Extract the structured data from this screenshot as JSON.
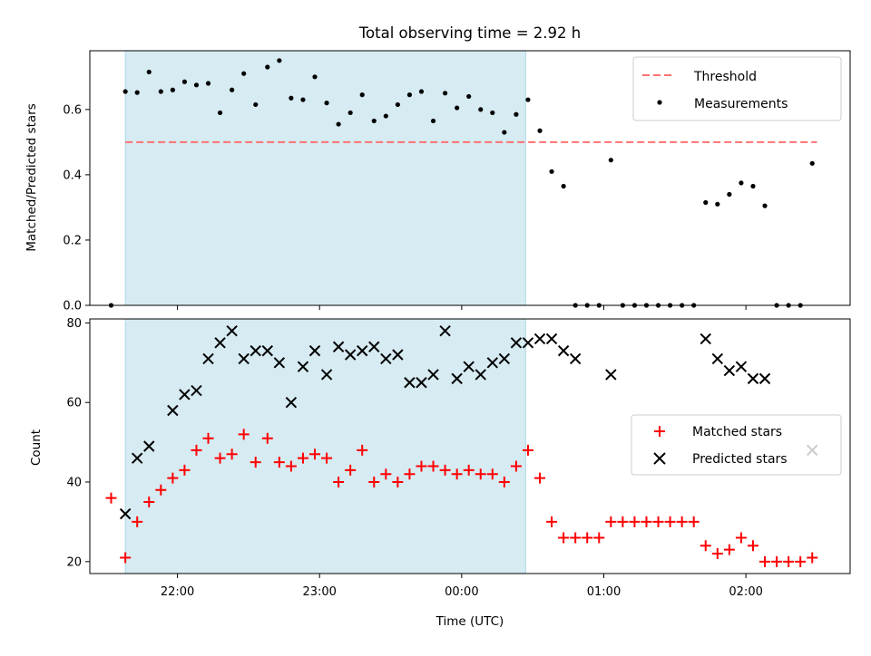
{
  "title": "Total observing time = 2.92 h",
  "chart_data": [
    {
      "type": "scatter",
      "panel": "top",
      "ylabel": "Matched/Predicted stars",
      "ylim": [
        0,
        0.78
      ],
      "yticks": [
        0.0,
        0.2,
        0.4,
        0.6
      ],
      "ytick_labels": [
        "0.0",
        "0.2",
        "0.4",
        "0.6"
      ],
      "xlim": [
        "21:23",
        "02:44"
      ],
      "shaded_range": [
        "21:38",
        "00:27"
      ],
      "threshold": {
        "value": 0.5,
        "x_range": [
          "21:38",
          "02:30"
        ],
        "color": "#ff7070"
      },
      "legend": {
        "placement": "top-right",
        "entries": [
          "Threshold",
          "Measurements"
        ]
      },
      "series": [
        {
          "name": "Measurements",
          "color": "#000000",
          "marker": "dot",
          "points": [
            [
              "21:32",
              0.0
            ],
            [
              "21:38",
              0.655
            ],
            [
              "21:43",
              0.652
            ],
            [
              "21:48",
              0.715
            ],
            [
              "21:53",
              0.655
            ],
            [
              "21:58",
              0.66
            ],
            [
              "22:03",
              0.685
            ],
            [
              "22:08",
              0.675
            ],
            [
              "22:13",
              0.68
            ],
            [
              "22:18",
              0.59
            ],
            [
              "22:23",
              0.66
            ],
            [
              "22:28",
              0.71
            ],
            [
              "22:33",
              0.615
            ],
            [
              "22:38",
              0.73
            ],
            [
              "22:43",
              0.75
            ],
            [
              "22:48",
              0.635
            ],
            [
              "22:53",
              0.63
            ],
            [
              "22:58",
              0.7
            ],
            [
              "23:03",
              0.62
            ],
            [
              "23:08",
              0.555
            ],
            [
              "23:13",
              0.59
            ],
            [
              "23:18",
              0.645
            ],
            [
              "23:23",
              0.565
            ],
            [
              "23:28",
              0.58
            ],
            [
              "23:33",
              0.615
            ],
            [
              "23:38",
              0.645
            ],
            [
              "23:43",
              0.655
            ],
            [
              "23:48",
              0.565
            ],
            [
              "23:53",
              0.65
            ],
            [
              "23:58",
              0.605
            ],
            [
              "00:03",
              0.64
            ],
            [
              "00:08",
              0.6
            ],
            [
              "00:13",
              0.59
            ],
            [
              "00:18",
              0.53
            ],
            [
              "00:23",
              0.585
            ],
            [
              "00:28",
              0.63
            ],
            [
              "00:33",
              0.535
            ],
            [
              "00:38",
              0.41
            ],
            [
              "00:43",
              0.365
            ],
            [
              "00:48",
              0.0
            ],
            [
              "00:53",
              0.0
            ],
            [
              "00:58",
              0.0
            ],
            [
              "01:03",
              0.445
            ],
            [
              "01:08",
              0.0
            ],
            [
              "01:13",
              0.0
            ],
            [
              "01:18",
              0.0
            ],
            [
              "01:23",
              0.0
            ],
            [
              "01:28",
              0.0
            ],
            [
              "01:33",
              0.0
            ],
            [
              "01:38",
              0.0
            ],
            [
              "01:43",
              0.315
            ],
            [
              "01:48",
              0.31
            ],
            [
              "01:53",
              0.34
            ],
            [
              "01:58",
              0.375
            ],
            [
              "02:03",
              0.365
            ],
            [
              "02:08",
              0.305
            ],
            [
              "02:13",
              0.0
            ],
            [
              "02:18",
              0.0
            ],
            [
              "02:23",
              0.0
            ],
            [
              "02:28",
              0.435
            ]
          ]
        }
      ]
    },
    {
      "type": "scatter",
      "panel": "bottom",
      "ylabel": "Count",
      "xlabel": "Time (UTC)",
      "ylim": [
        17,
        81
      ],
      "yticks": [
        20,
        40,
        60,
        80
      ],
      "ytick_labels": [
        "20",
        "40",
        "60",
        "80"
      ],
      "xlim": [
        "21:23",
        "02:44"
      ],
      "xticks": [
        "22:00",
        "23:00",
        "00:00",
        "01:00",
        "02:00"
      ],
      "shaded_range": [
        "21:38",
        "00:27"
      ],
      "legend": {
        "placement": "center-right",
        "entries": [
          "Matched stars",
          "Predicted stars"
        ]
      },
      "series": [
        {
          "name": "Matched stars",
          "color": "#ff0000",
          "marker": "plus",
          "points": [
            [
              "21:32",
              36
            ],
            [
              "21:38",
              21
            ],
            [
              "21:43",
              30
            ],
            [
              "21:48",
              35
            ],
            [
              "21:53",
              38
            ],
            [
              "21:58",
              41
            ],
            [
              "22:03",
              43
            ],
            [
              "22:08",
              48
            ],
            [
              "22:13",
              51
            ],
            [
              "22:18",
              46
            ],
            [
              "22:23",
              47
            ],
            [
              "22:28",
              52
            ],
            [
              "22:33",
              45
            ],
            [
              "22:38",
              51
            ],
            [
              "22:43",
              45
            ],
            [
              "22:48",
              44
            ],
            [
              "22:53",
              46
            ],
            [
              "22:58",
              47
            ],
            [
              "23:03",
              46
            ],
            [
              "23:08",
              40
            ],
            [
              "23:13",
              43
            ],
            [
              "23:18",
              48
            ],
            [
              "23:23",
              40
            ],
            [
              "23:28",
              42
            ],
            [
              "23:33",
              40
            ],
            [
              "23:38",
              42
            ],
            [
              "23:43",
              44
            ],
            [
              "23:48",
              44
            ],
            [
              "23:53",
              43
            ],
            [
              "23:58",
              42
            ],
            [
              "00:03",
              43
            ],
            [
              "00:08",
              42
            ],
            [
              "00:13",
              42
            ],
            [
              "00:18",
              40
            ],
            [
              "00:23",
              44
            ],
            [
              "00:28",
              48
            ],
            [
              "00:33",
              41
            ],
            [
              "00:38",
              30
            ],
            [
              "00:43",
              26
            ],
            [
              "00:48",
              26
            ],
            [
              "00:53",
              26
            ],
            [
              "00:58",
              26
            ],
            [
              "01:03",
              30
            ],
            [
              "01:08",
              30
            ],
            [
              "01:13",
              30
            ],
            [
              "01:18",
              30
            ],
            [
              "01:23",
              30
            ],
            [
              "01:28",
              30
            ],
            [
              "01:33",
              30
            ],
            [
              "01:38",
              30
            ],
            [
              "01:43",
              24
            ],
            [
              "01:48",
              22
            ],
            [
              "01:53",
              23
            ],
            [
              "01:58",
              26
            ],
            [
              "02:03",
              24
            ],
            [
              "02:08",
              20
            ],
            [
              "02:13",
              20
            ],
            [
              "02:18",
              20
            ],
            [
              "02:23",
              20
            ],
            [
              "02:28",
              21
            ]
          ]
        },
        {
          "name": "Predicted stars",
          "color": "#000000",
          "marker": "x",
          "points": [
            [
              "21:38",
              32
            ],
            [
              "21:43",
              46
            ],
            [
              "21:48",
              49
            ],
            [
              "21:58",
              58
            ],
            [
              "22:03",
              62
            ],
            [
              "22:08",
              63
            ],
            [
              "22:13",
              71
            ],
            [
              "22:18",
              75
            ],
            [
              "22:23",
              78
            ],
            [
              "22:28",
              71
            ],
            [
              "22:33",
              73
            ],
            [
              "22:38",
              73
            ],
            [
              "22:43",
              70
            ],
            [
              "22:48",
              60
            ],
            [
              "22:53",
              69
            ],
            [
              "22:58",
              73
            ],
            [
              "23:03",
              67
            ],
            [
              "23:08",
              74
            ],
            [
              "23:13",
              72
            ],
            [
              "23:18",
              73
            ],
            [
              "23:23",
              74
            ],
            [
              "23:28",
              71
            ],
            [
              "23:33",
              72
            ],
            [
              "23:38",
              65
            ],
            [
              "23:43",
              65
            ],
            [
              "23:48",
              67
            ],
            [
              "23:53",
              78
            ],
            [
              "23:58",
              66
            ],
            [
              "00:03",
              69
            ],
            [
              "00:08",
              67
            ],
            [
              "00:13",
              70
            ],
            [
              "00:18",
              71
            ],
            [
              "00:23",
              75
            ],
            [
              "00:28",
              75
            ],
            [
              "00:33",
              76
            ],
            [
              "00:38",
              76
            ],
            [
              "00:43",
              73
            ],
            [
              "00:48",
              71
            ],
            [
              "01:03",
              67
            ],
            [
              "01:43",
              76
            ],
            [
              "01:48",
              71
            ],
            [
              "01:53",
              68
            ],
            [
              "01:58",
              69
            ],
            [
              "02:03",
              66
            ],
            [
              "02:08",
              66
            ],
            [
              "02:28",
              48
            ]
          ]
        }
      ]
    }
  ]
}
